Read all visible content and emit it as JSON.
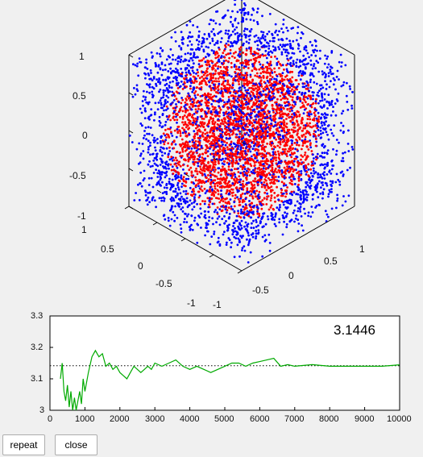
{
  "scatter3d": {
    "z_ticks": [
      "1",
      "0.5",
      "0",
      "-0.5",
      "-1"
    ],
    "y_ticks": [
      "1",
      "0.5",
      "0",
      "-0.5",
      "-1"
    ],
    "x_ticks": [
      "-1",
      "-0.5",
      "0",
      "0.5",
      "1"
    ],
    "colors": {
      "inside": "#ff0000",
      "outside": "#0000ff"
    }
  },
  "chart_data": {
    "type": "line",
    "title": "",
    "xlabel": "",
    "ylabel": "",
    "xlim": [
      0,
      10000
    ],
    "ylim": [
      3,
      3.3
    ],
    "x_ticks": [
      "0",
      "1000",
      "2000",
      "3000",
      "4000",
      "5000",
      "6000",
      "7000",
      "8000",
      "9000",
      "10000"
    ],
    "y_ticks": [
      "3.3",
      "3.2",
      "3.1",
      "3"
    ],
    "reference_value": 3.1416,
    "annotation": "3.1446",
    "series": [
      {
        "color": "#00aa00",
        "x": [
          300,
          350,
          400,
          450,
          500,
          550,
          600,
          650,
          700,
          750,
          800,
          850,
          900,
          950,
          1000,
          1100,
          1200,
          1300,
          1400,
          1500,
          1600,
          1700,
          1800,
          1900,
          2000,
          2100,
          2200,
          2300,
          2400,
          2500,
          2600,
          2700,
          2800,
          2900,
          3000,
          3200,
          3400,
          3600,
          3800,
          4000,
          4200,
          4400,
          4600,
          4800,
          5000,
          5200,
          5400,
          5600,
          5800,
          6000,
          6200,
          6400,
          6600,
          6800,
          7000,
          7500,
          8000,
          8500,
          9000,
          9500,
          10000
        ],
        "values": [
          3.1,
          3.15,
          3.06,
          3.03,
          3.08,
          3.01,
          3.06,
          3.0,
          3.04,
          2.99,
          3.03,
          3.06,
          3.02,
          3.1,
          3.06,
          3.12,
          3.17,
          3.19,
          3.17,
          3.18,
          3.14,
          3.15,
          3.13,
          3.14,
          3.12,
          3.11,
          3.1,
          3.12,
          3.14,
          3.13,
          3.12,
          3.13,
          3.14,
          3.13,
          3.15,
          3.14,
          3.15,
          3.16,
          3.14,
          3.13,
          3.14,
          3.13,
          3.12,
          3.13,
          3.14,
          3.15,
          3.15,
          3.14,
          3.15,
          3.155,
          3.16,
          3.165,
          3.14,
          3.145,
          3.14,
          3.145,
          3.14,
          3.14,
          3.14,
          3.14,
          3.1446
        ]
      }
    ]
  },
  "buttons": {
    "repeat": "repeat",
    "close": "close"
  }
}
